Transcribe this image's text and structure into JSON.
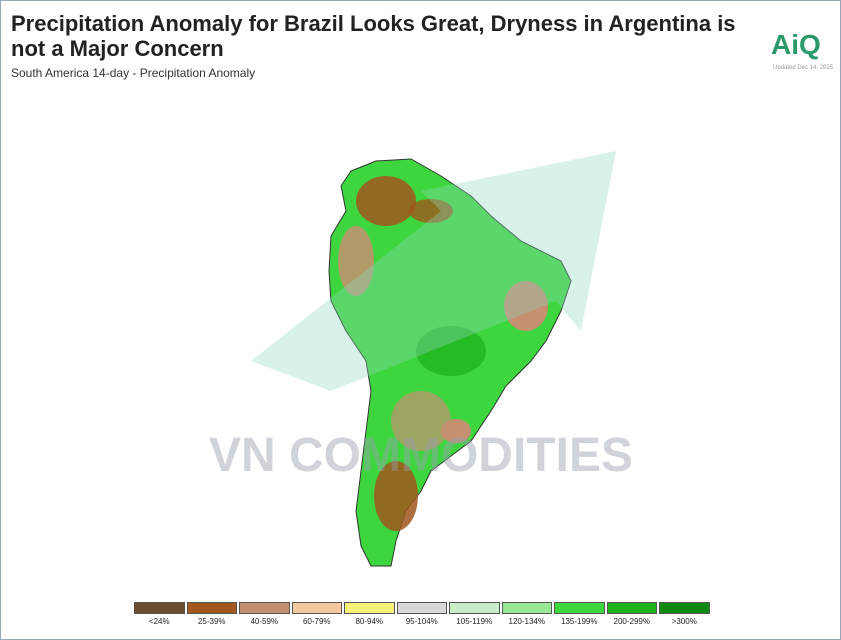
{
  "header": {
    "title": "Precipitation Anomaly for Brazil Looks Great, Dryness in Argentina is not a Major Concern",
    "subtitle": "South America 14-day - Precipitation Anomaly"
  },
  "logo": {
    "text": "AiQ",
    "updated": "Updated Dec 14, 2025"
  },
  "watermark": "VN COMMODITIES",
  "legend": [
    {
      "label": "<24%",
      "color": "#6b4a2e"
    },
    {
      "label": "25-39%",
      "color": "#a0561c"
    },
    {
      "label": "40-59%",
      "color": "#c49070"
    },
    {
      "label": "60-79%",
      "color": "#f5c9a0"
    },
    {
      "label": "80-94%",
      "color": "#f5f07a"
    },
    {
      "label": "95-104%",
      "color": "#d8d8d8"
    },
    {
      "label": "105-119%",
      "color": "#c8ecc8"
    },
    {
      "label": "120-134%",
      "color": "#98e898"
    },
    {
      "label": "135-199%",
      "color": "#3ed63e"
    },
    {
      "label": "200-299%",
      "color": "#1fb41f"
    },
    {
      "label": ">300%",
      "color": "#0f8a0f"
    }
  ]
}
